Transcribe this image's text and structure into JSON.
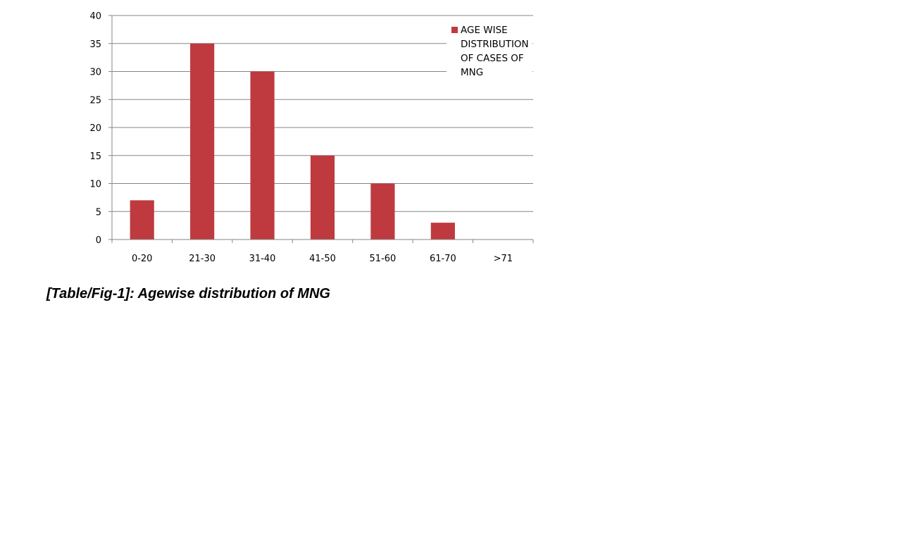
{
  "caption": "[Table/Fig-1]: Agewise distribution of MNG",
  "chart_data": {
    "type": "bar",
    "categories": [
      "0-20",
      "21-30",
      "31-40",
      "41-50",
      "51-60",
      "61-70",
      ">71"
    ],
    "series": [
      {
        "name": "AGE WISE DISTRIBUTION OF CASES OF MNG",
        "values": [
          7,
          35,
          30,
          15,
          10,
          3,
          0
        ],
        "color": "#be3a3f"
      }
    ],
    "legend_lines": [
      "AGE WISE",
      "DISTRIBUTION",
      "OF CASES OF",
      "MNG"
    ],
    "yticks": [
      0,
      5,
      10,
      15,
      20,
      25,
      30,
      35,
      40
    ],
    "ylim": [
      0,
      40
    ],
    "title": "",
    "xlabel": "",
    "ylabel": "",
    "grid": true,
    "legend_position": "top-right"
  }
}
